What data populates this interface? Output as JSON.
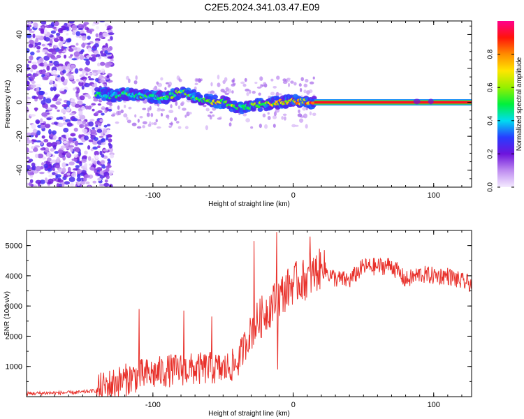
{
  "title": "C2E5.2024.341.03.47.E09",
  "chart_data": [
    {
      "type": "heatmap",
      "xlabel": "Height of straight line (km)",
      "ylabel": "Frequency (Hz)",
      "xlim": [
        -190,
        127
      ],
      "ylim": [
        -50,
        48
      ],
      "xticks": [
        -100,
        0,
        100
      ],
      "yticks": [
        -40,
        -20,
        0,
        20,
        40
      ],
      "colorbar": {
        "label": "Normalized spectral amplitude",
        "range": [
          0,
          1
        ],
        "ticks": [
          0.0,
          0.2,
          0.4,
          0.6,
          0.8
        ]
      },
      "noise_region": {
        "x_range": [
          -190,
          -135
        ],
        "freq_range": [
          -50,
          48
        ],
        "amplitude": 0.15
      },
      "track": [
        {
          "x": -140,
          "freq": 5,
          "amp": 0.5
        },
        {
          "x": -130,
          "freq": 4,
          "amp": 0.45
        },
        {
          "x": -120,
          "freq": 5,
          "amp": 0.55
        },
        {
          "x": -110,
          "freq": 4,
          "amp": 0.5
        },
        {
          "x": -100,
          "freq": 3,
          "amp": 0.5
        },
        {
          "x": -90,
          "freq": 3,
          "amp": 0.55
        },
        {
          "x": -80,
          "freq": 6,
          "amp": 0.6
        },
        {
          "x": -70,
          "freq": 3,
          "amp": 0.5
        },
        {
          "x": -60,
          "freq": 1,
          "amp": 0.75
        },
        {
          "x": -50,
          "freq": 0,
          "amp": 0.7
        },
        {
          "x": -40,
          "freq": -3,
          "amp": 0.6
        },
        {
          "x": -30,
          "freq": -2,
          "amp": 0.55
        },
        {
          "x": -20,
          "freq": -1,
          "amp": 0.65
        },
        {
          "x": -10,
          "freq": 0,
          "amp": 0.75
        },
        {
          "x": 0,
          "freq": 1,
          "amp": 0.8
        },
        {
          "x": 10,
          "freq": 0,
          "amp": 0.85
        },
        {
          "x": 15,
          "freq": 0,
          "amp": 1.0
        },
        {
          "x": 127,
          "freq": 0,
          "amp": 1.0
        }
      ]
    },
    {
      "type": "line",
      "xlabel": "Height of straight line (km)",
      "ylabel": "SNR (10 * v/v)",
      "xlim": [
        -190,
        127
      ],
      "ylim": [
        0,
        5500
      ],
      "xticks": [
        -100,
        0,
        100
      ],
      "yticks": [
        1000,
        2000,
        3000,
        4000,
        5000
      ],
      "color": "#e8302a",
      "series": [
        {
          "x": [
            -190,
            -175,
            -160,
            -150,
            -140,
            -130,
            -120,
            -110,
            -100,
            -90,
            -80,
            -70,
            -60,
            -50,
            -40,
            -30,
            -20,
            -10,
            0,
            10,
            20,
            30,
            40,
            50,
            60,
            70,
            80,
            90,
            100,
            110,
            120,
            127
          ],
          "y": [
            100,
            120,
            130,
            150,
            200,
            400,
            550,
            700,
            750,
            850,
            900,
            900,
            950,
            900,
            1100,
            2200,
            2800,
            3300,
            3750,
            3900,
            4250,
            3900,
            3850,
            4300,
            4300,
            4350,
            3850,
            4050,
            4000,
            4000,
            3800,
            3750
          ]
        }
      ],
      "spikes": [
        {
          "x": -110,
          "y": 2900
        },
        {
          "x": -78,
          "y": 2850
        },
        {
          "x": -58,
          "y": 2650
        },
        {
          "x": -28,
          "y": 5150
        },
        {
          "x": -12,
          "y": 5450
        },
        {
          "x": -11,
          "y": 900
        },
        {
          "x": 12,
          "y": 5300
        },
        {
          "x": 22,
          "y": 4850
        }
      ]
    }
  ]
}
